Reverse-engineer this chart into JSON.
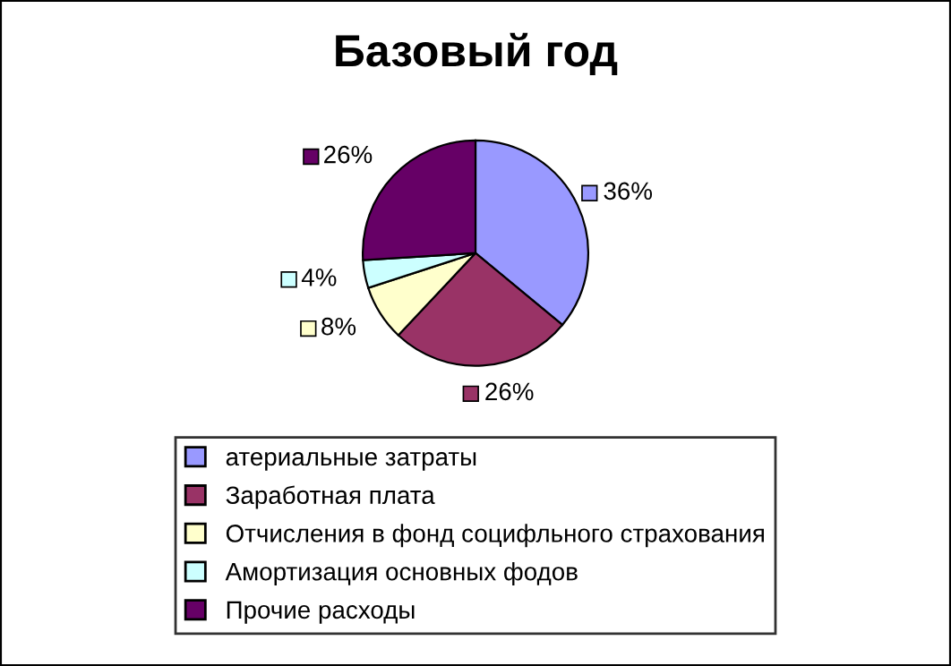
{
  "chart_data": {
    "type": "pie",
    "title": "Базовый год",
    "categories": [
      "атериальные затраты",
      "Заработная плата",
      "Отчисления в фонд социфльного страхования",
      "Амортизация основных фодов",
      "Прочие расходы"
    ],
    "values": [
      36,
      26,
      8,
      4,
      26
    ],
    "colors": [
      "#9999ff",
      "#993366",
      "#ffffcc",
      "#ccffff",
      "#660066"
    ],
    "value_labels": [
      "36%",
      "26%",
      "8%",
      "4%",
      "26%"
    ],
    "legend": "bottom"
  }
}
